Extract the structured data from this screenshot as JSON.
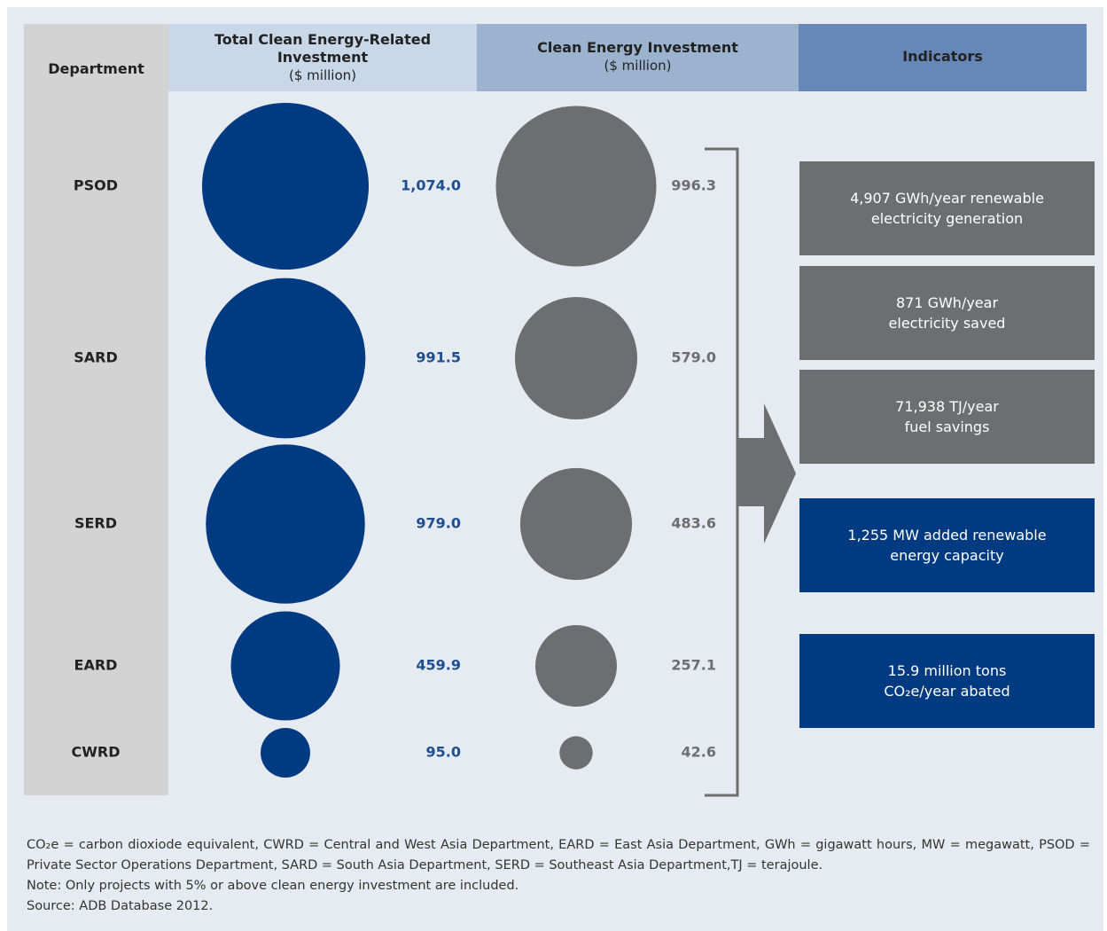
{
  "chart_data": {
    "type": "bubble_table",
    "category_header": "Department",
    "categories": [
      "PSOD",
      "SARD",
      "SERD",
      "EARD",
      "CWRD"
    ],
    "series": [
      {
        "name": "Total Clean Energy-Related Investment",
        "unit": "($ million)",
        "color": "#003a80",
        "values": [
          1074,
          991.5,
          979,
          459.9,
          95
        ],
        "value_labels": [
          "1,074.0",
          "991.5",
          "979.0",
          "459.9",
          "95.0"
        ]
      },
      {
        "name": "Clean Energy Investment",
        "unit": "($ million)",
        "color": "#6d6e71",
        "values": [
          996.3,
          579,
          483.6,
          257.1,
          42.6
        ],
        "value_labels": [
          "996.3",
          "579.0",
          "483.6",
          "257.1",
          "42.6"
        ]
      }
    ],
    "indicators_header": "Indicators",
    "indicators": [
      {
        "lines": [
          "4,907 GWh/year renewable",
          "electricity generation"
        ],
        "color": "#6d6e71"
      },
      {
        "lines": [
          "871 GWh/year",
          "electricity saved"
        ],
        "color": "#6d6e71"
      },
      {
        "lines": [
          "71,938 TJ/year",
          "fuel savings"
        ],
        "color": "#6d6e71"
      },
      {
        "lines": [
          "1,255 MW added renewable",
          "energy capacity"
        ],
        "color": "#003a80"
      },
      {
        "lines": [
          "15.9 million tons",
          "CO₂e/year abated"
        ],
        "color": "#003a80"
      }
    ]
  },
  "notes": [
    "CO₂e = carbon dioxiode equivalent, CWRD = Central and West Asia Department, EARD = East Asia Department, GWh = gigawatt hours, MW = megawatt, PSOD = Private Sector Operations Department, SARD = South Asia Department, SERD = Southeast Asia Department,TJ = terajoule.",
    "Note: Only projects with 5% or above clean energy investment are included.",
    "Source: ADB Database 2012."
  ]
}
